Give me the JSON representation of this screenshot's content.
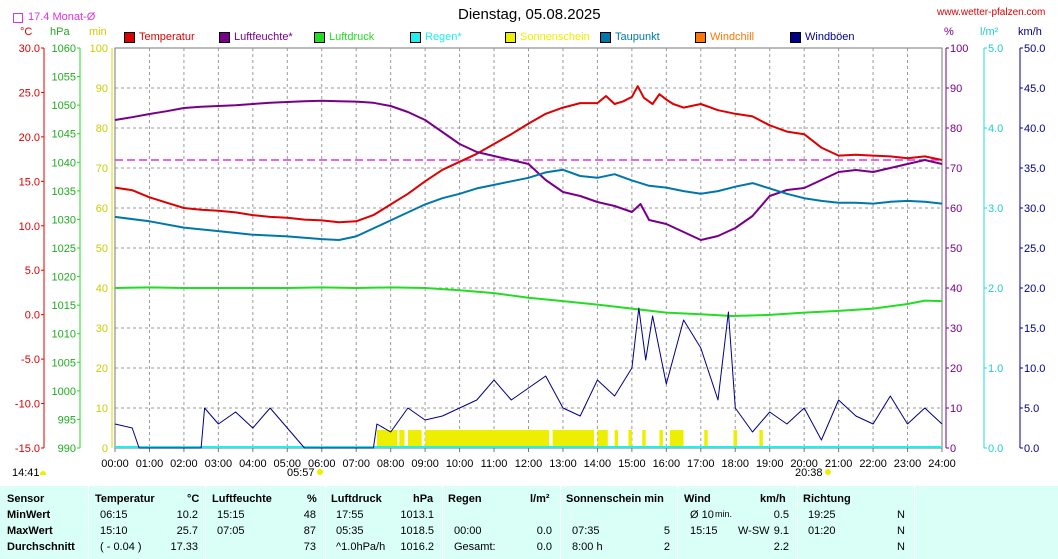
{
  "header": {
    "title": "Dienstag, 05.08.2025",
    "site": "www.wetter-pfalzen.com",
    "monthly_avg_label": "17.4 Monat-Ø"
  },
  "units": {
    "temp": "°C",
    "press": "hPa",
    "min": "min",
    "percent": "%",
    "rain": "l/m²",
    "wind": "km/h"
  },
  "colors": {
    "temperatur": "#dd0000",
    "luftfeuchte": "#770088",
    "luftdruck": "#22dd22",
    "regen": "#22eeee",
    "sonnenschein": "#eeee00",
    "taupunkt": "#0077aa",
    "windchill": "#ff7700",
    "windboeen": "#000088",
    "monthly_avg": "#dd33dd"
  },
  "legend": [
    {
      "label": "Temperatur",
      "color": "#dd0000"
    },
    {
      "label": "Luftfeuchte*",
      "color": "#770088"
    },
    {
      "label": "Luftdruck",
      "color": "#22dd22"
    },
    {
      "label": "Regen*",
      "color": "#22eeee"
    },
    {
      "label": "Sonnenschein",
      "color": "#eeee00"
    },
    {
      "label": "Taupunkt",
      "color": "#0077aa"
    },
    {
      "label": "Windchill",
      "color": "#ff7700"
    },
    {
      "label": "Windböen",
      "color": "#000088"
    }
  ],
  "sun_markers": {
    "sunrise": "05:57",
    "sunset": "20:38"
  },
  "current_time": "14:41",
  "chart_data": {
    "type": "line",
    "title": "Dienstag, 05.08.2025",
    "x_ticks": [
      "00:00",
      "01:00",
      "02:00",
      "03:00",
      "04:00",
      "05:00",
      "06:00",
      "07:00",
      "08:00",
      "09:00",
      "10:00",
      "11:00",
      "12:00",
      "13:00",
      "14:00",
      "15:00",
      "16:00",
      "17:00",
      "18:00",
      "19:00",
      "20:00",
      "21:00",
      "22:00",
      "23:00",
      "24:00"
    ],
    "axes": {
      "temp": {
        "unit": "°C",
        "range": [
          -15,
          30
        ],
        "ticks": [
          "30.0",
          "25.0",
          "20.0",
          "15.0",
          "10.0",
          "5.0",
          "0.0",
          "-5.0",
          "-10.0",
          "-15.0"
        ]
      },
      "pressure": {
        "unit": "hPa",
        "range": [
          990,
          1060
        ],
        "ticks": [
          "1060",
          "1055",
          "1050",
          "1045",
          "1040",
          "1035",
          "1030",
          "1025",
          "1020",
          "1015",
          "1010",
          "1005",
          "1000",
          "995",
          "990"
        ]
      },
      "minutes": {
        "unit": "min",
        "range": [
          0,
          100
        ],
        "ticks": [
          "100",
          "90",
          "80",
          "70",
          "60",
          "50",
          "40",
          "30",
          "20",
          "10",
          "0"
        ]
      },
      "humidity": {
        "unit": "%",
        "range": [
          0,
          100
        ],
        "ticks": [
          "100",
          "90",
          "80",
          "70",
          "60",
          "50",
          "40",
          "30",
          "20",
          "10",
          "0"
        ]
      },
      "rain": {
        "unit": "l/m²",
        "range": [
          0,
          5
        ],
        "ticks": [
          "5.0",
          "4.0",
          "3.0",
          "2.0",
          "1.0",
          "0.0"
        ]
      },
      "wind": {
        "unit": "km/h",
        "range": [
          0,
          50
        ],
        "ticks": [
          "50.0",
          "45.0",
          "40.0",
          "35.0",
          "30.0",
          "25.0",
          "20.0",
          "15.0",
          "10.0",
          "5.0",
          "0.0"
        ]
      }
    },
    "monthly_avg_temp": 17.4,
    "series": [
      {
        "name": "Temperatur",
        "axis": "temp",
        "color": "#dd0000",
        "points": [
          [
            0,
            14.3
          ],
          [
            0.5,
            14.0
          ],
          [
            1,
            13.2
          ],
          [
            1.5,
            12.6
          ],
          [
            2,
            12.0
          ],
          [
            2.5,
            11.8
          ],
          [
            3,
            11.7
          ],
          [
            3.5,
            11.5
          ],
          [
            4,
            11.2
          ],
          [
            4.5,
            11.0
          ],
          [
            5,
            10.9
          ],
          [
            5.5,
            10.7
          ],
          [
            6,
            10.6
          ],
          [
            6.5,
            10.4
          ],
          [
            7,
            10.5
          ],
          [
            7.5,
            11.2
          ],
          [
            8,
            12.4
          ],
          [
            8.5,
            13.6
          ],
          [
            9,
            15.0
          ],
          [
            9.5,
            16.3
          ],
          [
            10,
            17.2
          ],
          [
            10.5,
            18.1
          ],
          [
            11,
            19.2
          ],
          [
            11.5,
            20.3
          ],
          [
            12,
            21.5
          ],
          [
            12.5,
            22.6
          ],
          [
            13,
            23.3
          ],
          [
            13.5,
            23.8
          ],
          [
            14,
            23.8
          ],
          [
            14.25,
            24.6
          ],
          [
            14.5,
            23.7
          ],
          [
            14.75,
            24.0
          ],
          [
            15,
            24.5
          ],
          [
            15.17,
            25.7
          ],
          [
            15.35,
            24.4
          ],
          [
            15.6,
            23.7
          ],
          [
            15.8,
            24.8
          ],
          [
            16,
            24.2
          ],
          [
            16.2,
            23.7
          ],
          [
            16.5,
            23.3
          ],
          [
            17,
            23.7
          ],
          [
            17.5,
            23.0
          ],
          [
            18,
            22.6
          ],
          [
            18.5,
            22.3
          ],
          [
            19,
            21.3
          ],
          [
            19.5,
            20.6
          ],
          [
            20,
            20.3
          ],
          [
            20.5,
            18.8
          ],
          [
            21,
            17.9
          ],
          [
            21.5,
            18.0
          ],
          [
            22,
            17.9
          ],
          [
            22.5,
            17.8
          ],
          [
            23,
            17.6
          ],
          [
            23.5,
            17.8
          ],
          [
            24,
            17.4
          ]
        ]
      },
      {
        "name": "Luftfeuchte*",
        "axis": "humidity",
        "color": "#770088",
        "points": [
          [
            0,
            82
          ],
          [
            0.5,
            82.7
          ],
          [
            1,
            83.5
          ],
          [
            1.5,
            84.2
          ],
          [
            2,
            85
          ],
          [
            2.5,
            85.3
          ],
          [
            3,
            85.5
          ],
          [
            3.5,
            85.7
          ],
          [
            4,
            86
          ],
          [
            4.5,
            86.3
          ],
          [
            5,
            86.5
          ],
          [
            5.5,
            86.7
          ],
          [
            6,
            86.8
          ],
          [
            6.5,
            86.7
          ],
          [
            7,
            86.6
          ],
          [
            7.5,
            86.3
          ],
          [
            8,
            85.5
          ],
          [
            8.5,
            84.0
          ],
          [
            9,
            82.0
          ],
          [
            9.5,
            79.0
          ],
          [
            10,
            76.0
          ],
          [
            10.5,
            74.0
          ],
          [
            11,
            73.0
          ],
          [
            11.5,
            72.0
          ],
          [
            12,
            71.0
          ],
          [
            12.5,
            67.0
          ],
          [
            13,
            64.0
          ],
          [
            13.5,
            63.0
          ],
          [
            14,
            61.5
          ],
          [
            14.5,
            60.5
          ],
          [
            15,
            59.0
          ],
          [
            15.25,
            61.0
          ],
          [
            15.5,
            57.0
          ],
          [
            16,
            56.0
          ],
          [
            16.5,
            54.0
          ],
          [
            17,
            52.0
          ],
          [
            17.5,
            53.0
          ],
          [
            18,
            55.0
          ],
          [
            18.5,
            58.0
          ],
          [
            19,
            63.0
          ],
          [
            19.5,
            64.5
          ],
          [
            20,
            65.0
          ],
          [
            20.5,
            67.0
          ],
          [
            21,
            69.0
          ],
          [
            21.5,
            69.5
          ],
          [
            22,
            69.0
          ],
          [
            22.5,
            70.0
          ],
          [
            23,
            71.0
          ],
          [
            23.5,
            72.0
          ],
          [
            24,
            71.0
          ]
        ]
      },
      {
        "name": "Luftdruck",
        "axis": "pressure",
        "color": "#22dd22",
        "points": [
          [
            0,
            1018.0
          ],
          [
            1,
            1018.1
          ],
          [
            2,
            1018.0
          ],
          [
            3,
            1018.0
          ],
          [
            4,
            1018.0
          ],
          [
            5,
            1018.0
          ],
          [
            6,
            1018.1
          ],
          [
            7,
            1018.0
          ],
          [
            8,
            1018.1
          ],
          [
            9,
            1018.0
          ],
          [
            10,
            1017.6
          ],
          [
            11,
            1017.1
          ],
          [
            12,
            1016.3
          ],
          [
            13,
            1015.7
          ],
          [
            14,
            1015.1
          ],
          [
            15,
            1014.4
          ],
          [
            16,
            1013.7
          ],
          [
            17,
            1013.4
          ],
          [
            17.92,
            1013.1
          ],
          [
            19,
            1013.3
          ],
          [
            20,
            1013.7
          ],
          [
            21,
            1014.0
          ],
          [
            22,
            1014.4
          ],
          [
            23,
            1015.2
          ],
          [
            23.5,
            1015.8
          ],
          [
            24,
            1015.7
          ]
        ]
      },
      {
        "name": "Taupunkt",
        "axis": "temp",
        "color": "#0077aa",
        "points": [
          [
            0,
            11.0
          ],
          [
            1,
            10.5
          ],
          [
            2,
            9.8
          ],
          [
            3,
            9.4
          ],
          [
            4,
            9.0
          ],
          [
            5,
            8.8
          ],
          [
            6,
            8.5
          ],
          [
            6.5,
            8.4
          ],
          [
            7,
            8.8
          ],
          [
            7.5,
            9.7
          ],
          [
            8,
            10.6
          ],
          [
            8.5,
            11.5
          ],
          [
            9,
            12.4
          ],
          [
            9.5,
            13.1
          ],
          [
            10,
            13.6
          ],
          [
            10.5,
            14.2
          ],
          [
            11,
            14.6
          ],
          [
            11.5,
            15.0
          ],
          [
            12,
            15.4
          ],
          [
            12.5,
            16.0
          ],
          [
            13,
            16.3
          ],
          [
            13.5,
            15.6
          ],
          [
            14,
            15.4
          ],
          [
            14.5,
            15.8
          ],
          [
            15,
            15.1
          ],
          [
            15.5,
            14.5
          ],
          [
            16,
            14.3
          ],
          [
            16.5,
            13.9
          ],
          [
            17,
            13.6
          ],
          [
            17.5,
            13.9
          ],
          [
            18,
            14.4
          ],
          [
            18.5,
            14.8
          ],
          [
            19,
            14.2
          ],
          [
            19.5,
            13.6
          ],
          [
            20,
            13.1
          ],
          [
            20.5,
            12.8
          ],
          [
            21,
            12.6
          ],
          [
            21.5,
            12.6
          ],
          [
            22,
            12.5
          ],
          [
            22.5,
            12.7
          ],
          [
            23,
            12.8
          ],
          [
            23.5,
            12.7
          ],
          [
            24,
            12.5
          ]
        ]
      },
      {
        "name": "Windböen",
        "axis": "wind",
        "color": "#000088",
        "points": [
          [
            0,
            3
          ],
          [
            0.5,
            2.5
          ],
          [
            0.7,
            0
          ],
          [
            2.5,
            0
          ],
          [
            2.6,
            5
          ],
          [
            3,
            3
          ],
          [
            3.5,
            4.5
          ],
          [
            4,
            2.5
          ],
          [
            4.5,
            5
          ],
          [
            5,
            2.5
          ],
          [
            5.5,
            0
          ],
          [
            7.5,
            0
          ],
          [
            7.6,
            3
          ],
          [
            8,
            2
          ],
          [
            8.5,
            5
          ],
          [
            9,
            3.5
          ],
          [
            9.5,
            4
          ],
          [
            10,
            5
          ],
          [
            10.5,
            6
          ],
          [
            11,
            8.5
          ],
          [
            11.5,
            6
          ],
          [
            12,
            7.5
          ],
          [
            12.5,
            9
          ],
          [
            13,
            5
          ],
          [
            13.5,
            4
          ],
          [
            14,
            8.5
          ],
          [
            14.5,
            6.5
          ],
          [
            15,
            10
          ],
          [
            15.2,
            17.5
          ],
          [
            15.4,
            11
          ],
          [
            15.6,
            16.5
          ],
          [
            16,
            8
          ],
          [
            16.5,
            16
          ],
          [
            17,
            12.5
          ],
          [
            17.5,
            6
          ],
          [
            17.8,
            17
          ],
          [
            18,
            5
          ],
          [
            18.5,
            2
          ],
          [
            19,
            4.5
          ],
          [
            19.5,
            3
          ],
          [
            20,
            5
          ],
          [
            20.5,
            1
          ],
          [
            21,
            6
          ],
          [
            21.5,
            4
          ],
          [
            22,
            3
          ],
          [
            22.5,
            6.5
          ],
          [
            23,
            3
          ],
          [
            23.5,
            5
          ],
          [
            24,
            3
          ]
        ]
      }
    ],
    "sunshine_bars": [
      [
        7.6,
        8.2
      ],
      [
        8.25,
        8.4
      ],
      [
        8.5,
        8.9
      ],
      [
        9.0,
        12.6
      ],
      [
        12.7,
        13.9
      ],
      [
        14.0,
        14.3
      ],
      [
        14.5,
        14.6
      ],
      [
        14.9,
        15.0
      ],
      [
        15.3,
        15.4
      ],
      [
        15.8,
        15.9
      ],
      [
        16.1,
        16.5
      ],
      [
        17.1,
        17.2
      ],
      [
        17.95,
        18.05
      ],
      [
        18.7,
        18.8
      ]
    ],
    "series_note_sunshine": "Sonnenschein"
  },
  "summary": {
    "headers": {
      "sensor": "Sensor",
      "temperatur": "Temperatur",
      "temp_unit": "°C",
      "luftfeuchte": "Luftfeuchte",
      "hum_unit": "%",
      "luftdruck": "Luftdruck",
      "press_unit": "hPa",
      "regen": "Regen",
      "rain_unit": "l/m²",
      "sonnenschein": "Sonnenschein min",
      "wind": "Wind",
      "wind_unit": "km/h",
      "richtung": "Richtung"
    },
    "rows": [
      {
        "label": "MinWert",
        "temp_time": "06:15",
        "temp_val": "10.2",
        "hum_time": "15:15",
        "hum_val": "48",
        "press_time": "17:55",
        "press_val": "1013.1",
        "rain_time": "",
        "rain_val": "",
        "sun_time": "",
        "sun_val": "",
        "wind_label": "Ø 10",
        "wind_sub": "min.",
        "wind_dir": "",
        "wind_val": "0.5",
        "dir_time": "19:25",
        "dir_val": "N"
      },
      {
        "label": "MaxWert",
        "temp_time": "15:10",
        "temp_val": "25.7",
        "hum_time": "07:05",
        "hum_val": "87",
        "press_time": "05:35",
        "press_val": "1018.5",
        "rain_time": "00:00",
        "rain_val": "0.0",
        "sun_time": "07:35",
        "sun_val": "5",
        "wind_label": "15:15",
        "wind_sub": "",
        "wind_dir": "W-SW",
        "wind_val": "9.1",
        "dir_time": "01:20",
        "dir_val": "N"
      },
      {
        "label": "Durchschnitt",
        "temp_time": "( - 0.04 )",
        "temp_val": "17.33",
        "hum_time": "",
        "hum_val": "73",
        "press_time": "^1.0hPa/h",
        "press_val": "1016.2",
        "rain_time": "Gesamt:",
        "rain_val": "0.0",
        "sun_time": "8:00 h",
        "sun_val": "2",
        "wind_label": "",
        "wind_sub": "",
        "wind_dir": "",
        "wind_val": "2.2",
        "dir_time": "",
        "dir_val": "N"
      }
    ]
  }
}
